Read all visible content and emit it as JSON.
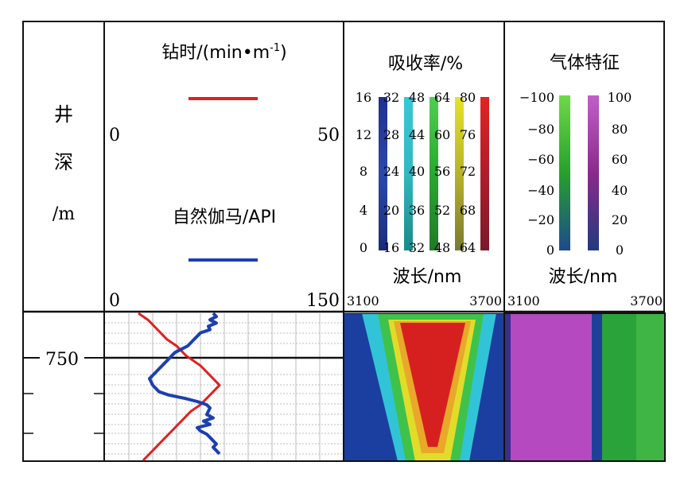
{
  "tracks": {
    "depth": {
      "label_chars": [
        "井",
        "深",
        "/m"
      ],
      "depth_tick": "750"
    },
    "drilling": {
      "rop_title": "钻时/(min•m",
      "rop_title_sup": "-1",
      "rop_title_close": ")",
      "rop_scale_min": "0",
      "rop_scale_max": "50",
      "gamma_title": "自然伽马/API",
      "gamma_scale_min": "0",
      "gamma_scale_max": "150",
      "colors": {
        "rop": "#e02020",
        "gamma": "#1c3fb0"
      }
    },
    "absorbance": {
      "title": "吸收率/%",
      "xlabel": "波长/nm",
      "x_min": "3100",
      "x_max": "3700",
      "scale_labels": [
        [
          "16",
          "12",
          "8",
          "4",
          "0"
        ],
        [
          "32",
          "28",
          "24",
          "20",
          "16"
        ],
        [
          "48",
          "44",
          "40",
          "36",
          "32"
        ],
        [
          "64",
          "60",
          "56",
          "52",
          "48"
        ],
        [
          "80",
          "76",
          "72",
          "68",
          "64"
        ]
      ],
      "bar_colors": [
        [
          "#20318c",
          "#2a49a8",
          "#1a2d7a"
        ],
        [
          "#38c8d8",
          "#30b8c0",
          "#1a8a8a"
        ],
        [
          "#4fcf50",
          "#2aa830",
          "#1f7a28"
        ],
        [
          "#e6e22a",
          "#b8b22a",
          "#7a7a30"
        ],
        [
          "#e02424",
          "#b01c2a",
          "#7a1a2a"
        ]
      ]
    },
    "gas": {
      "title": "气体特征",
      "xlabel": "波长/nm",
      "x_min": "3100",
      "x_max": "3700",
      "left_scale": [
        "−100",
        "−80",
        "−60",
        "−40",
        "−20",
        "0"
      ],
      "right_scale": [
        "100",
        "80",
        "60",
        "40",
        "20",
        "0"
      ],
      "bar_colors": {
        "left": [
          "#6fd84a",
          "#28a02c",
          "#1c4a8c"
        ],
        "right": [
          "#c060c8",
          "#8a2a8a",
          "#203a80"
        ]
      }
    }
  },
  "chart_data": [
    {
      "type": "line",
      "title": "钻时/(min•m-1) and 自然伽马/API",
      "ylabel": "井深/m",
      "y_tick": 750,
      "series": [
        {
          "name": "钻时/(min•m-1)",
          "scale": [
            0,
            50
          ],
          "color": "#e02020",
          "points": [
            [
              7,
              738
            ],
            [
              9,
              740
            ],
            [
              11,
              743
            ],
            [
              13,
              746
            ],
            [
              15,
              748
            ],
            [
              17,
              751
            ],
            [
              20,
              754
            ],
            [
              22,
              757
            ],
            [
              24,
              760
            ],
            [
              22,
              763
            ],
            [
              20,
              766
            ],
            [
              18,
              768
            ],
            [
              16,
              771
            ],
            [
              14,
              774
            ],
            [
              12,
              777
            ],
            [
              10,
              780
            ],
            [
              8,
              783
            ]
          ]
        },
        {
          "name": "自然伽马/API",
          "scale": [
            0,
            150
          ],
          "color": "#1c3fb0",
          "points": [
            [
              68,
              738
            ],
            [
              70,
              739
            ],
            [
              66,
              740
            ],
            [
              70,
              741
            ],
            [
              65,
              742
            ],
            [
              66,
              743
            ],
            [
              60,
              744
            ],
            [
              58,
              745
            ],
            [
              56,
              746
            ],
            [
              54,
              747
            ],
            [
              52,
              748
            ],
            [
              48,
              749
            ],
            [
              44,
              750
            ],
            [
              42,
              751
            ],
            [
              40,
              752
            ],
            [
              38,
              753
            ],
            [
              36,
              754
            ],
            [
              34,
              755
            ],
            [
              32,
              756
            ],
            [
              30,
              757
            ],
            [
              28,
              758
            ],
            [
              29,
              759
            ],
            [
              30,
              760
            ],
            [
              32,
              761
            ],
            [
              34,
              762
            ],
            [
              40,
              763
            ],
            [
              50,
              764
            ],
            [
              58,
              765
            ],
            [
              64,
              766
            ],
            [
              66,
              767
            ],
            [
              65,
              768
            ],
            [
              64,
              769
            ],
            [
              68,
              770
            ],
            [
              62,
              771
            ],
            [
              66,
              772
            ],
            [
              58,
              773
            ],
            [
              60,
              774
            ],
            [
              64,
              775
            ],
            [
              66,
              776
            ],
            [
              68,
              777
            ],
            [
              70,
              778
            ],
            [
              68,
              779
            ],
            [
              70,
              780
            ],
            [
              72,
              781
            ]
          ]
        }
      ],
      "ylim": [
        738,
        783
      ],
      "grid": true
    },
    {
      "type": "heatmap",
      "title": "吸收率/%",
      "xlabel": "波长/nm",
      "x_range": [
        3100,
        3700
      ],
      "value_range": [
        0,
        80
      ],
      "description_zones": [
        {
          "value_range": [
            64,
            80
          ],
          "color": "red"
        },
        {
          "value_range": [
            48,
            64
          ],
          "color": "yellow"
        },
        {
          "value_range": [
            32,
            48
          ],
          "color": "green"
        },
        {
          "value_range": [
            16,
            32
          ],
          "color": "cyan"
        },
        {
          "value_range": [
            0,
            16
          ],
          "color": "blue"
        }
      ]
    },
    {
      "type": "heatmap",
      "title": "气体特征",
      "xlabel": "波长/nm",
      "x_range": [
        3100,
        3700
      ],
      "scales": [
        [
          -100,
          0
        ],
        [
          0,
          100
        ]
      ]
    }
  ]
}
